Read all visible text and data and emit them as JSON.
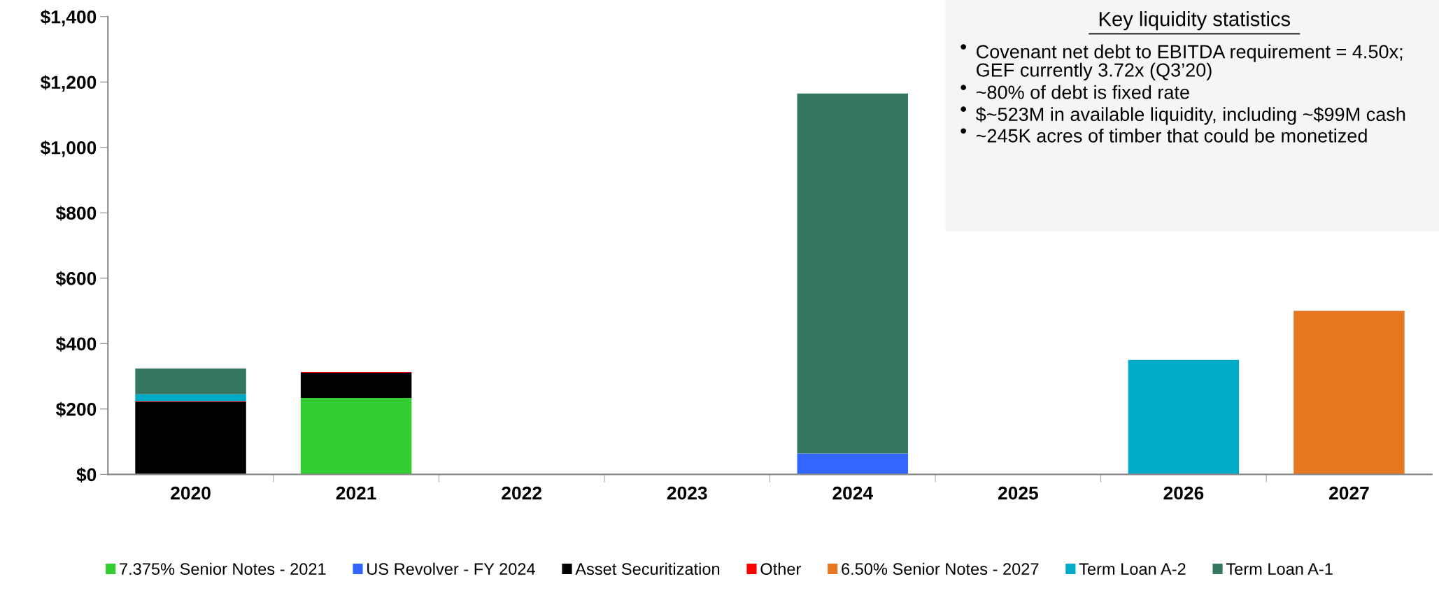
{
  "chart_data": {
    "type": "bar",
    "stacked": true,
    "categories": [
      "2020",
      "2021",
      "2022",
      "2023",
      "2024",
      "2025",
      "2026",
      "2027"
    ],
    "series": [
      {
        "name": "7.375% Senior Notes - 2021",
        "color": "#33cc33",
        "values": [
          0,
          234,
          0,
          0,
          0,
          0,
          0,
          0
        ]
      },
      {
        "name": "US Revolver - FY 2024",
        "color": "#3366ff",
        "values": [
          0,
          0,
          0,
          0,
          64,
          0,
          0,
          0
        ]
      },
      {
        "name": "Asset Securitization",
        "color": "#000000",
        "values": [
          221,
          77,
          0,
          0,
          0,
          0,
          0,
          0
        ]
      },
      {
        "name": "Other",
        "color": "#ff0000",
        "values": [
          2,
          2,
          0,
          0,
          0,
          0,
          0,
          0
        ]
      },
      {
        "name": "6.50% Senior Notes - 2027",
        "color": "#e87722",
        "values": [
          0,
          0,
          0,
          0,
          0,
          0,
          0,
          500
        ]
      },
      {
        "name": "Term Loan A-2",
        "color": "#00abc8",
        "values": [
          22,
          0,
          0,
          0,
          0,
          0,
          350,
          0
        ]
      },
      {
        "name": "Term Loan A-1",
        "color": "#357662",
        "values": [
          79,
          0,
          0,
          0,
          1101,
          0,
          0,
          0
        ]
      }
    ],
    "ylim": [
      0,
      1400
    ],
    "yticks": [
      {
        "value": 0,
        "label": "$0"
      },
      {
        "value": 200,
        "label": "$200"
      },
      {
        "value": 400,
        "label": "$400"
      },
      {
        "value": 600,
        "label": "$600"
      },
      {
        "value": 800,
        "label": "$800"
      },
      {
        "value": 1000,
        "label": "$1,000"
      },
      {
        "value": 1200,
        "label": "$1,200"
      },
      {
        "value": 1400,
        "label": "$1,400"
      }
    ],
    "grid": false,
    "legend": "bottom",
    "annotations": [
      "Key liquidity statistics",
      "Covenant net debt to EBITDA requirement = 4.50x; GEF currently 3.72x (Q3’20)",
      "~80% of debt is fixed rate",
      "$~523M in available liquidity, including ~$99M cash",
      "~245K acres of timber that could be monetized"
    ]
  }
}
